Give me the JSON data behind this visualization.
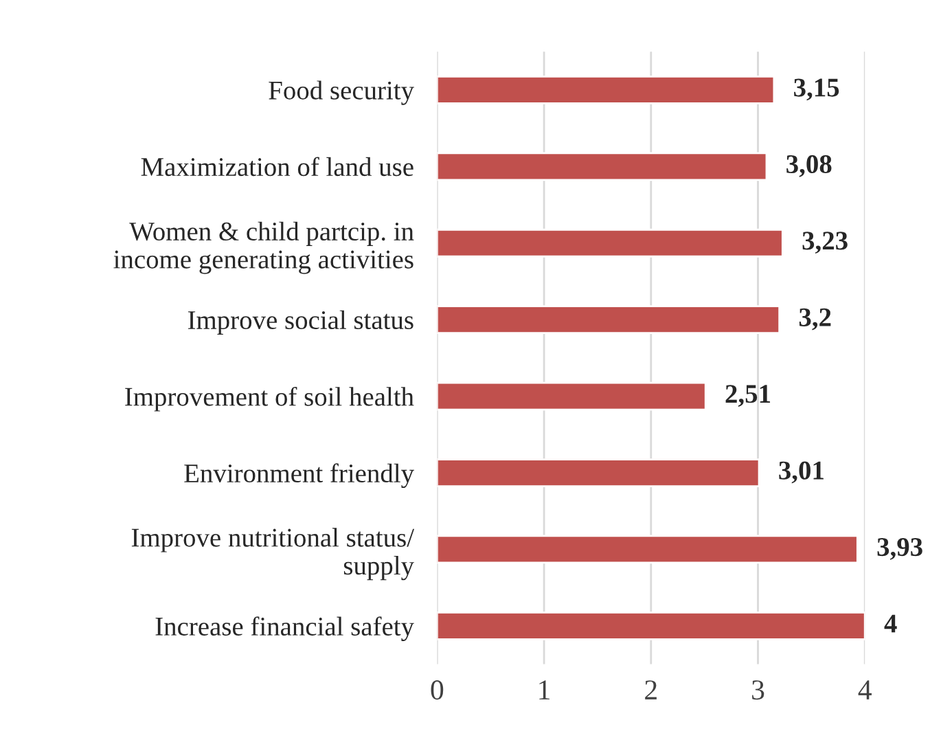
{
  "chart_data": {
    "type": "bar",
    "orientation": "horizontal",
    "categories": [
      "Food security",
      "Maximization of land use",
      "Women & child partcip. in\nincome generating activities",
      "Improve social status",
      "Improvement of soil health",
      "Environment friendly",
      "Improve nutritional status/\nsupply",
      "Increase financial safety"
    ],
    "values": [
      3.15,
      3.08,
      3.23,
      3.2,
      2.51,
      3.01,
      3.93,
      4
    ],
    "value_labels": [
      "3,15",
      "3,08",
      "3,23",
      "3,2",
      "2,51",
      "3,01",
      "3,93",
      "4"
    ],
    "color": "#c0504d",
    "xlim": [
      0,
      4
    ],
    "xticks": [
      0,
      1,
      2,
      3,
      4
    ],
    "grid": "x"
  }
}
